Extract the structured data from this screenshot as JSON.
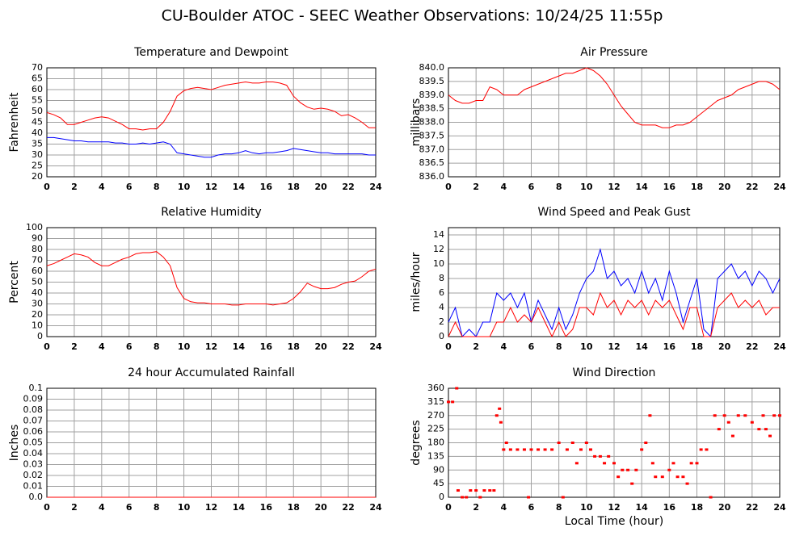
{
  "title": "CU-Boulder ATOC - SEEC Weather Observations: 10/24/25 11:55p",
  "chart_data": [
    {
      "type": "line",
      "title": "Temperature and Dewpoint",
      "ylabel": "Fahrenheit",
      "x": [
        0,
        0.5,
        1,
        1.5,
        2,
        2.5,
        3,
        3.5,
        4,
        4.5,
        5,
        5.5,
        6,
        6.5,
        7,
        7.5,
        8,
        8.5,
        9,
        9.5,
        10,
        10.5,
        11,
        11.5,
        12,
        12.5,
        13,
        13.5,
        14,
        14.5,
        15,
        15.5,
        16,
        16.5,
        17,
        17.5,
        18,
        18.5,
        19,
        19.5,
        20,
        20.5,
        21,
        21.5,
        22,
        22.5,
        23,
        23.5,
        24
      ],
      "series": [
        {
          "color": "#ff0000",
          "values": [
            49.5,
            48.5,
            47,
            44,
            44,
            45,
            46,
            47,
            47.5,
            47,
            45.5,
            44,
            42,
            42,
            41.5,
            42,
            42,
            45,
            50,
            57,
            59.5,
            60.5,
            61,
            60.5,
            60,
            61,
            62,
            62.5,
            63,
            63.5,
            63,
            63,
            63.5,
            63.5,
            63,
            62,
            57,
            54,
            52,
            51,
            51.5,
            51,
            50,
            48,
            48.5,
            47,
            45,
            42.5,
            42.5
          ]
        },
        {
          "color": "#0000ff",
          "values": [
            38,
            38,
            37.5,
            37,
            36.5,
            36.5,
            36,
            36,
            36,
            36,
            35.5,
            35.5,
            35,
            35,
            35.5,
            35,
            35.5,
            36,
            35,
            31,
            30.5,
            30,
            29.5,
            29,
            29,
            30,
            30.5,
            30.5,
            31,
            32,
            31,
            30.5,
            31,
            31,
            31.5,
            32,
            33,
            32.5,
            32,
            31.5,
            31,
            31,
            30.5,
            30.5,
            30.5,
            30.5,
            30.5,
            30,
            30
          ]
        }
      ],
      "xlim": [
        0,
        24
      ],
      "xticks": [
        0,
        2,
        4,
        6,
        8,
        10,
        12,
        14,
        16,
        18,
        20,
        22,
        24
      ],
      "ylim": [
        20,
        70
      ],
      "yticks": [
        20,
        25,
        30,
        35,
        40,
        45,
        50,
        55,
        60,
        65,
        70
      ],
      "grid": true
    },
    {
      "type": "line",
      "title": "Air Pressure",
      "ylabel": "millibars",
      "x": [
        0,
        0.5,
        1,
        1.5,
        2,
        2.5,
        3,
        3.5,
        4,
        4.5,
        5,
        5.5,
        6,
        6.5,
        7,
        7.5,
        8,
        8.5,
        9,
        9.5,
        10,
        10.5,
        11,
        11.5,
        12,
        12.5,
        13,
        13.5,
        14,
        14.5,
        15,
        15.5,
        16,
        16.5,
        17,
        17.5,
        18,
        18.5,
        19,
        19.5,
        20,
        20.5,
        21,
        21.5,
        22,
        22.5,
        23,
        23.5,
        24
      ],
      "series": [
        {
          "color": "#ff0000",
          "values": [
            839.0,
            838.8,
            838.7,
            838.7,
            838.8,
            838.8,
            839.3,
            839.2,
            839.0,
            839.0,
            839.0,
            839.2,
            839.3,
            839.4,
            839.5,
            839.6,
            839.7,
            839.8,
            839.8,
            839.9,
            840.0,
            839.9,
            839.7,
            839.4,
            839.0,
            838.6,
            838.3,
            838.0,
            837.9,
            837.9,
            837.9,
            837.8,
            837.8,
            837.9,
            837.9,
            838.0,
            838.2,
            838.4,
            838.6,
            838.8,
            838.9,
            839.0,
            839.2,
            839.3,
            839.4,
            839.5,
            839.5,
            839.4,
            839.2
          ]
        }
      ],
      "xlim": [
        0,
        24
      ],
      "xticks": [
        0,
        2,
        4,
        6,
        8,
        10,
        12,
        14,
        16,
        18,
        20,
        22,
        24
      ],
      "ylim": [
        836,
        840
      ],
      "yticks": [
        {
          "value": 836,
          "label": "836.0"
        },
        836.5,
        {
          "value": 837,
          "label": "837.0"
        },
        837.5,
        {
          "value": 838,
          "label": "838.0"
        },
        838.5,
        {
          "value": 839,
          "label": "839.0"
        },
        839.5,
        {
          "value": 840,
          "label": "840.0"
        }
      ],
      "grid": true
    },
    {
      "type": "line",
      "title": "Relative Humidity",
      "ylabel": "Percent",
      "x": [
        0,
        0.5,
        1,
        1.5,
        2,
        2.5,
        3,
        3.5,
        4,
        4.5,
        5,
        5.5,
        6,
        6.5,
        7,
        7.5,
        8,
        8.5,
        9,
        9.5,
        10,
        10.5,
        11,
        11.5,
        12,
        12.5,
        13,
        13.5,
        14,
        14.5,
        15,
        15.5,
        16,
        16.5,
        17,
        17.5,
        18,
        18.5,
        19,
        19.5,
        20,
        20.5,
        21,
        21.5,
        22,
        22.5,
        23,
        23.5,
        24
      ],
      "series": [
        {
          "color": "#ff0000",
          "values": [
            65,
            67,
            70,
            73,
            76,
            75,
            73,
            68,
            65,
            65,
            68,
            71,
            73,
            76,
            77,
            77,
            78,
            73,
            65,
            45,
            35,
            32,
            31,
            31,
            30,
            30,
            30,
            29,
            29,
            30,
            30,
            30,
            30,
            29,
            30,
            31,
            35,
            41,
            49,
            46,
            44,
            44,
            45,
            48,
            50,
            51,
            55,
            60,
            62
          ]
        }
      ],
      "xlim": [
        0,
        24
      ],
      "xticks": [
        0,
        2,
        4,
        6,
        8,
        10,
        12,
        14,
        16,
        18,
        20,
        22,
        24
      ],
      "ylim": [
        0,
        100
      ],
      "yticks": [
        0,
        10,
        20,
        30,
        40,
        50,
        60,
        70,
        80,
        90,
        100
      ],
      "grid": true
    },
    {
      "type": "line",
      "title": "Wind Speed and Peak Gust",
      "ylabel": "miles/hour",
      "x": [
        0,
        0.5,
        1,
        1.5,
        2,
        2.5,
        3,
        3.5,
        4,
        4.5,
        5,
        5.5,
        6,
        6.5,
        7,
        7.5,
        8,
        8.5,
        9,
        9.5,
        10,
        10.5,
        11,
        11.5,
        12,
        12.5,
        13,
        13.5,
        14,
        14.5,
        15,
        15.5,
        16,
        16.5,
        17,
        17.5,
        18,
        18.5,
        19,
        19.5,
        20,
        20.5,
        21,
        21.5,
        22,
        22.5,
        23,
        23.5,
        24
      ],
      "series": [
        {
          "color": "#0000ff",
          "values": [
            2,
            4,
            0,
            1,
            0,
            2,
            2,
            6,
            5,
            6,
            4,
            6,
            2,
            5,
            3,
            1,
            4,
            1,
            3,
            6,
            8,
            9,
            12,
            8,
            9,
            7,
            8,
            6,
            9,
            6,
            8,
            5,
            9,
            6,
            2,
            5,
            8,
            1,
            0,
            8,
            9,
            10,
            8,
            9,
            7,
            9,
            8,
            6,
            8
          ]
        },
        {
          "color": "#ff0000",
          "values": [
            0,
            2,
            0,
            0,
            0,
            0,
            0,
            2,
            2,
            4,
            2,
            3,
            2,
            4,
            2,
            0,
            2,
            0,
            1,
            4,
            4,
            3,
            6,
            4,
            5,
            3,
            5,
            4,
            5,
            3,
            5,
            4,
            5,
            3,
            1,
            4,
            4,
            0,
            0,
            4,
            5,
            6,
            4,
            5,
            4,
            5,
            3,
            4,
            4
          ]
        }
      ],
      "xlim": [
        0,
        24
      ],
      "xticks": [
        0,
        2,
        4,
        6,
        8,
        10,
        12,
        14,
        16,
        18,
        20,
        22,
        24
      ],
      "ylim": [
        0,
        15
      ],
      "yticks": [
        0,
        2,
        4,
        6,
        8,
        10,
        12,
        14
      ],
      "grid": true
    },
    {
      "type": "line",
      "title": "24 hour Accumulated Rainfall",
      "ylabel": "Inches",
      "x": [
        0,
        24
      ],
      "series": [
        {
          "color": "#ff0000",
          "values": [
            0,
            0
          ]
        }
      ],
      "xlim": [
        0,
        24
      ],
      "xticks": [
        0,
        2,
        4,
        6,
        8,
        10,
        12,
        14,
        16,
        18,
        20,
        22,
        24
      ],
      "ylim": [
        0,
        0.1
      ],
      "yticks": [
        {
          "value": 0,
          "label": "0.0"
        },
        0.01,
        0.02,
        0.03,
        0.04,
        0.05,
        0.06,
        0.07,
        0.08,
        0.09,
        0.1
      ],
      "grid": true
    },
    {
      "type": "scatter",
      "title": "Wind Direction",
      "ylabel": "degrees",
      "xlabel": "Local Time (hour)",
      "x": [
        0,
        0.3,
        0.6,
        0.7,
        1,
        1.3,
        1.6,
        2,
        2.3,
        2.6,
        3,
        3.3,
        3.5,
        3.7,
        3.8,
        4,
        4.2,
        4.5,
        5,
        5.5,
        5.8,
        6,
        6.5,
        7,
        7.5,
        8,
        8.3,
        8.6,
        9,
        9.3,
        9.6,
        10,
        10.3,
        10.6,
        11,
        11.3,
        11.6,
        12,
        12.3,
        12.6,
        13,
        13.3,
        13.6,
        14,
        14.3,
        14.6,
        14.8,
        15,
        15.5,
        16,
        16.3,
        16.6,
        17,
        17.3,
        17.6,
        18,
        18.3,
        18.7,
        19,
        19.3,
        19.6,
        20,
        20.3,
        20.6,
        21,
        21.5,
        22,
        22.5,
        22.8,
        23,
        23.3,
        23.6,
        24
      ],
      "series": [
        {
          "color": "#ff0000",
          "values": [
            315,
            315,
            360,
            22.5,
            0,
            0,
            22.5,
            22.5,
            0,
            22.5,
            22.5,
            22.5,
            270,
            292.5,
            247.5,
            157.5,
            180,
            157.5,
            157.5,
            157.5,
            0,
            157.5,
            157.5,
            157.5,
            157.5,
            180,
            0,
            157.5,
            180,
            112.5,
            157.5,
            180,
            157.5,
            135,
            135,
            112.5,
            135,
            112.5,
            67.5,
            90,
            90,
            45,
            90,
            157.5,
            180,
            270,
            112.5,
            67.5,
            67.5,
            90,
            112.5,
            67.5,
            67.5,
            45,
            112.5,
            112.5,
            157.5,
            157.5,
            0,
            270,
            225,
            270,
            247.5,
            202.5,
            270,
            270,
            247.5,
            225,
            270,
            225,
            202.5,
            270,
            270
          ]
        }
      ],
      "xlim": [
        0,
        24
      ],
      "xticks": [
        0,
        2,
        4,
        6,
        8,
        10,
        12,
        14,
        16,
        18,
        20,
        22,
        24
      ],
      "ylim": [
        0,
        360
      ],
      "yticks": [
        0,
        45,
        90,
        135,
        180,
        225,
        270,
        315,
        360
      ],
      "grid": true
    }
  ]
}
